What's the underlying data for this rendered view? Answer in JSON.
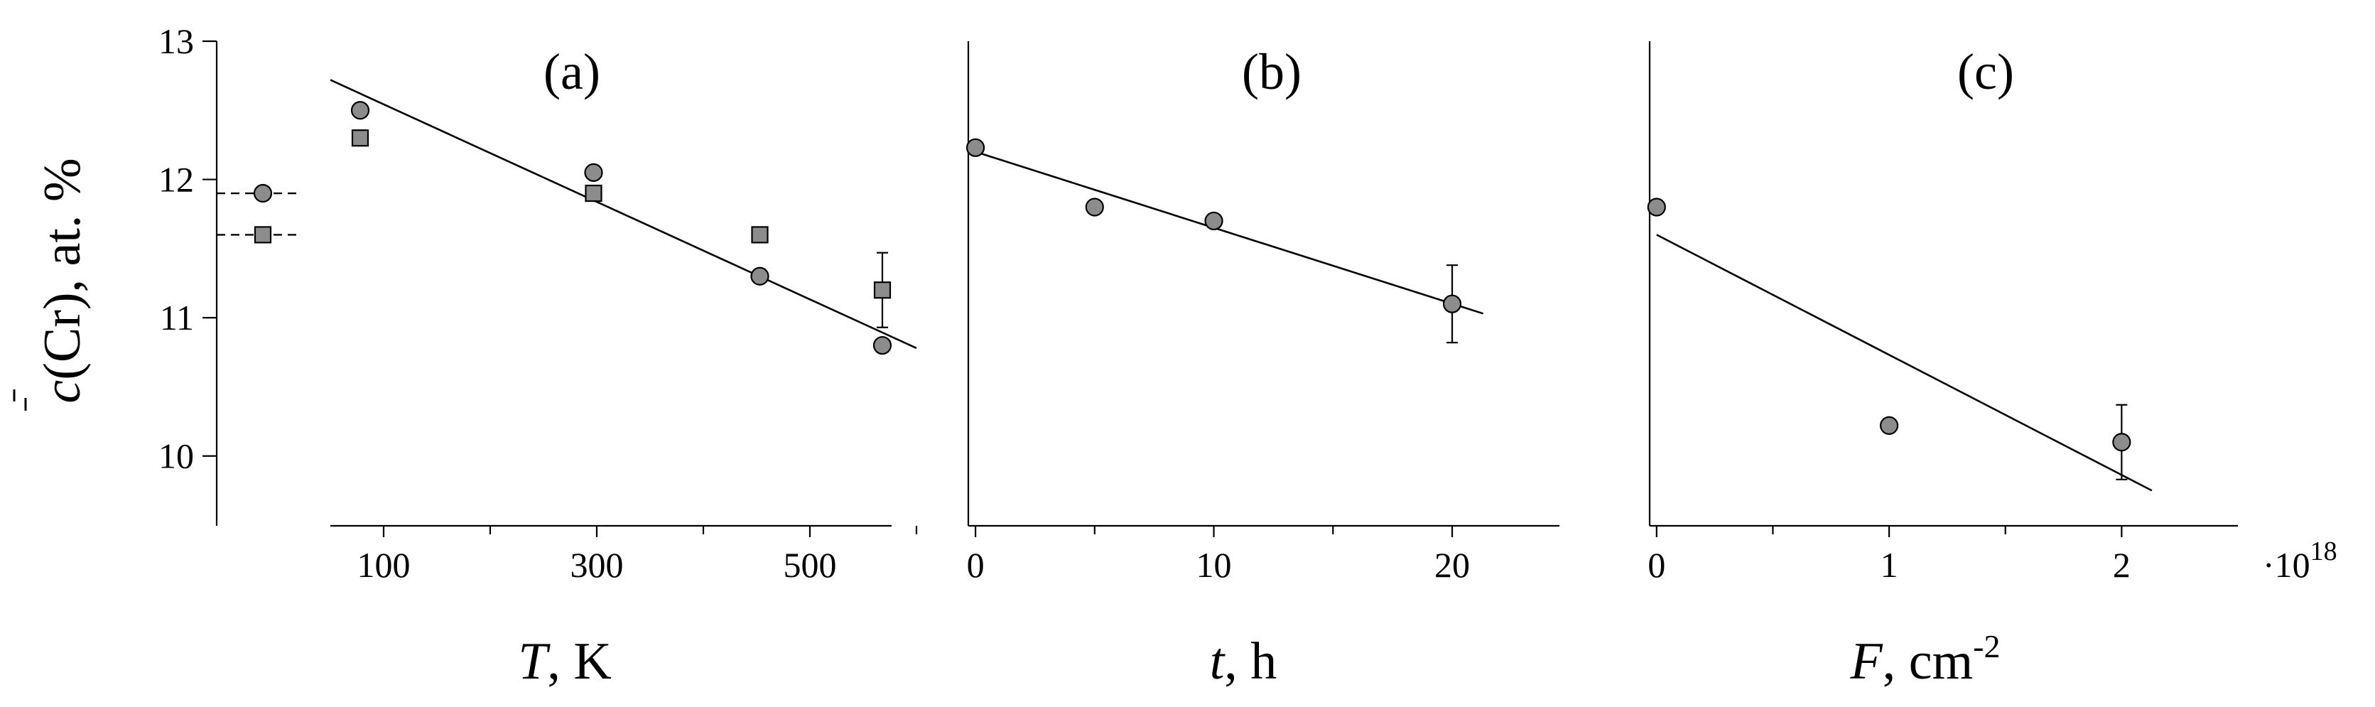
{
  "chart_data": [
    {
      "type": "scatter",
      "panel_label": "(a)",
      "xlabel_var": "T",
      "xlabel_unit": ", K",
      "ylabel": "c(Cr), at. %",
      "ylim": [
        9.5,
        13
      ],
      "yticks": [
        10,
        11,
        12,
        13
      ],
      "xlim": [
        50,
        620
      ],
      "xticks": [
        100,
        200,
        300,
        400,
        500,
        600
      ],
      "xticklabels": [
        "100",
        "",
        "300",
        "",
        "500",
        ""
      ],
      "series": [
        {
          "marker": "circle",
          "x": [
            78,
            297,
            453,
            568
          ],
          "y": [
            12.5,
            12.05,
            11.3,
            10.8
          ]
        },
        {
          "marker": "square",
          "x": [
            78,
            297,
            453,
            568
          ],
          "y": [
            12.3,
            11.9,
            11.6,
            11.2
          ]
        }
      ],
      "errorbars": [
        {
          "x": 568,
          "y": 11.2,
          "err": 0.27
        }
      ],
      "fit": {
        "x": [
          50,
          600
        ],
        "y": [
          12.72,
          10.78
        ]
      },
      "reference": {
        "circle": 11.9,
        "square": 11.6
      }
    },
    {
      "type": "scatter",
      "panel_label": "(b)",
      "xlabel_var": "t",
      "xlabel_unit": ", h",
      "xlim": [
        -0.3,
        24.5
      ],
      "xticks": [
        0,
        5,
        10,
        15,
        20
      ],
      "xticklabels": [
        "0",
        "",
        "10",
        "",
        "20"
      ],
      "series": [
        {
          "marker": "circle",
          "x": [
            0,
            5,
            10,
            20
          ],
          "y": [
            12.23,
            11.8,
            11.7,
            11.1
          ]
        }
      ],
      "errorbars": [
        {
          "x": 20,
          "y": 11.1,
          "err": 0.28
        }
      ],
      "fit": {
        "x": [
          0,
          21.3
        ],
        "y": [
          12.2,
          11.03
        ]
      }
    },
    {
      "type": "scatter",
      "panel_label": "(c)",
      "xlabel_var": "F",
      "xlabel_unit": ", cm",
      "xlabel_exp": "-2",
      "x_multiplier_base": "·10",
      "x_multiplier_exp": "18",
      "xlim": [
        -0.03,
        2.5
      ],
      "xticks": [
        0,
        0.5,
        1,
        1.5,
        2
      ],
      "xticklabels": [
        "0",
        "",
        "1",
        "",
        "2"
      ],
      "series": [
        {
          "marker": "circle",
          "x": [
            0,
            1,
            2
          ],
          "y": [
            11.8,
            10.22,
            10.1
          ]
        }
      ],
      "errorbars": [
        {
          "x": 2,
          "y": 10.1,
          "err": 0.27
        }
      ],
      "fit": {
        "x": [
          0,
          2.13
        ],
        "y": [
          11.6,
          9.75
        ]
      }
    }
  ]
}
